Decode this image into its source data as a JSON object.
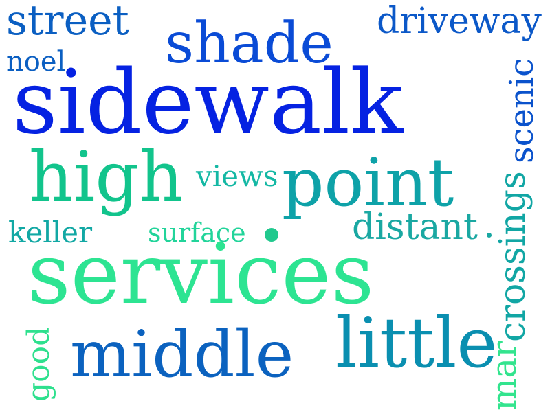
{
  "words": [
    {
      "id": "street",
      "text": "street",
      "color": "#0b5fc2"
    },
    {
      "id": "shade",
      "text": "shade",
      "color": "#0a4bd6"
    },
    {
      "id": "driveway",
      "text": "driveway",
      "color": "#0b58c8"
    },
    {
      "id": "noel",
      "text": "noel",
      "color": "#0b5fc2"
    },
    {
      "id": "sidewalk",
      "text": "sidewalk",
      "color": "#0522e2"
    },
    {
      "id": "scenic",
      "text": "scenic",
      "color": "#0a52cc"
    },
    {
      "id": "high",
      "text": "high",
      "color": "#12c48c"
    },
    {
      "id": "views",
      "text": "views",
      "color": "#14b8a4"
    },
    {
      "id": "point",
      "text": "point",
      "color": "#0ea2a8"
    },
    {
      "id": "keller",
      "text": "keller",
      "color": "#12a8a4"
    },
    {
      "id": "surface",
      "text": "surface",
      "color": "#22d49a"
    },
    {
      "id": "distant",
      "text": "distant",
      "color": "#1aa8a2"
    },
    {
      "id": "crossings",
      "text": "crossings",
      "color": "#11a6a4"
    },
    {
      "id": "services",
      "text": "services",
      "color": "#2de492"
    },
    {
      "id": "good",
      "text": "good",
      "color": "#2ee08e"
    },
    {
      "id": "middle",
      "text": "middle",
      "color": "#0b62bf"
    },
    {
      "id": "little",
      "text": "little",
      "color": "#0a8fb0"
    },
    {
      "id": "mar",
      "text": "mar",
      "color": "#33e48e"
    }
  ],
  "dot_color": "#21c98e",
  "period_color": "#1aa8a2"
}
